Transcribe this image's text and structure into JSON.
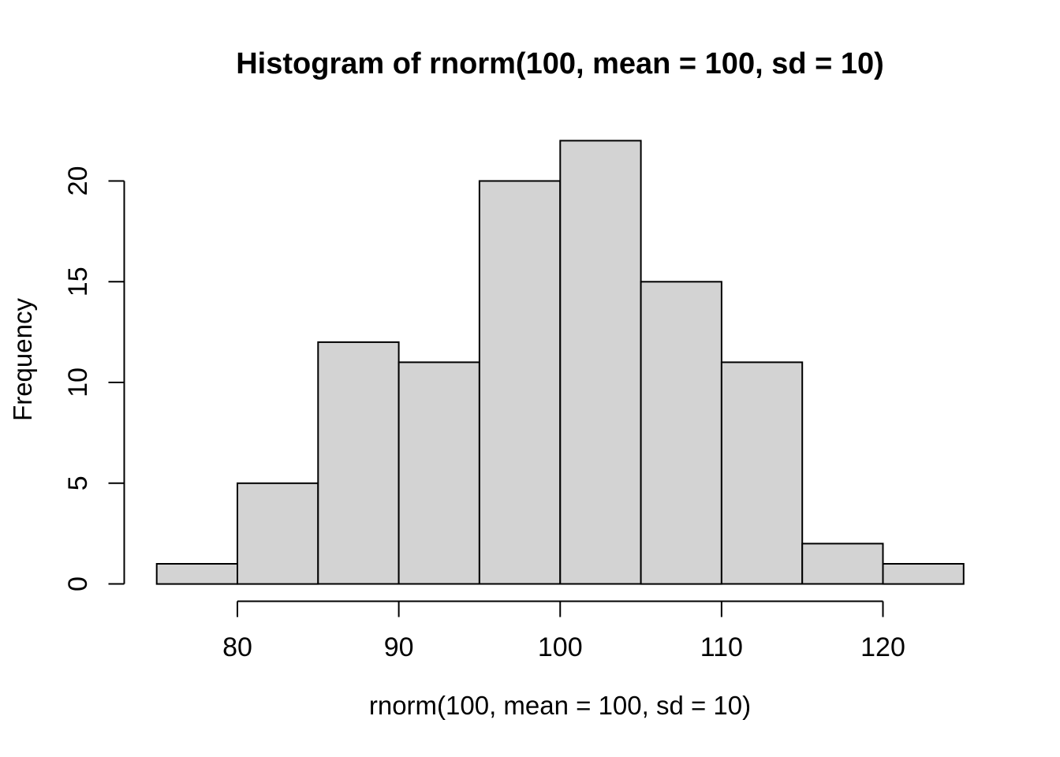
{
  "figure": {
    "background": "#ffffff"
  },
  "chart_data": {
    "type": "bar",
    "subtype": "histogram",
    "title": "Histogram of rnorm(100, mean = 100, sd = 10)",
    "xlabel": "rnorm(100, mean = 100, sd = 10)",
    "ylabel": "Frequency",
    "bin_edges": [
      75,
      80,
      85,
      90,
      95,
      100,
      105,
      110,
      115,
      120,
      125
    ],
    "counts": [
      1,
      5,
      12,
      11,
      20,
      22,
      15,
      11,
      2,
      1
    ],
    "x_ticks": [
      80,
      90,
      100,
      110,
      120
    ],
    "y_ticks": [
      0,
      5,
      10,
      15,
      20
    ],
    "xlim": [
      75,
      125
    ],
    "ylim": [
      0,
      22
    ],
    "grid": false,
    "legend": "none",
    "title_bold": true,
    "bar_fill": "#d3d3d3",
    "bar_stroke": "#000000",
    "axis_color": "#000000",
    "text_color": "#000000"
  }
}
